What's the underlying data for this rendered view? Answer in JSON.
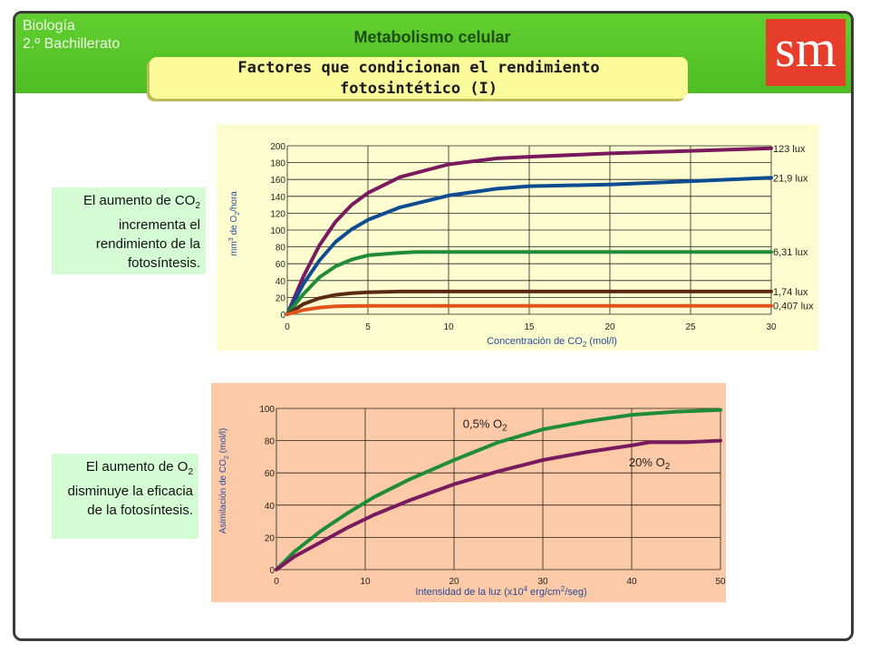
{
  "header": {
    "subject_line1": "Biología",
    "subject_line2": "2.º Bachillerato",
    "title": "Metabolismo celular",
    "logo_text": "sm",
    "subtitle_line1": "Factores que condicionan el rendimiento",
    "subtitle_line2": "fotosintético (I)"
  },
  "notes": {
    "co2": {
      "pre": "El aumento de CO",
      "sub": "2",
      "post": "incrementa el rendimiento de la fotosíntesis."
    },
    "o2": {
      "pre": "El aumento de O",
      "sub": "2",
      "post": "disminuye la eficacia de la fotosíntesis."
    }
  },
  "colors": {
    "header_green": "#55c428",
    "panel1_bg": "#fdfdcf",
    "panel2_bg": "#fccaa6",
    "purple": "#7a1a5e",
    "blue": "#0e4c92",
    "green": "#1e8c38",
    "brown": "#5a2a14",
    "orange": "#e2541c",
    "axis_text": "#2a4a9a"
  },
  "chart_data": [
    {
      "type": "line",
      "xlabel": "Concentración de CO",
      "xlabel_sub": "2",
      "xlabel_post": " (mol/l)",
      "ylabel": "mm",
      "ylabel_sup": "3",
      "ylabel_mid": " de O",
      "ylabel_sub": "2",
      "ylabel_post": "/hora",
      "xlim": [
        0,
        30
      ],
      "ylim": [
        0,
        200
      ],
      "xticks": [
        0,
        5,
        10,
        15,
        20,
        25,
        30
      ],
      "yticks": [
        0,
        20,
        40,
        60,
        80,
        100,
        120,
        140,
        160,
        180,
        200
      ],
      "grid": true,
      "series": [
        {
          "name": "123 lux",
          "color": "#7a1a5e",
          "points": [
            [
              0,
              0
            ],
            [
              1,
              45
            ],
            [
              2,
              82
            ],
            [
              3,
              110
            ],
            [
              4,
              130
            ],
            [
              5,
              144
            ],
            [
              7,
              163
            ],
            [
              10,
              178
            ],
            [
              13,
              185
            ],
            [
              15,
              187
            ],
            [
              20,
              191
            ],
            [
              25,
              194
            ],
            [
              30,
              197
            ]
          ]
        },
        {
          "name": "21,9 lux",
          "color": "#0e4c92",
          "points": [
            [
              0,
              0
            ],
            [
              1,
              36
            ],
            [
              2,
              64
            ],
            [
              3,
              86
            ],
            [
              4,
              101
            ],
            [
              5,
              112
            ],
            [
              7,
              127
            ],
            [
              10,
              141
            ],
            [
              13,
              149
            ],
            [
              15,
              152
            ],
            [
              20,
              154
            ],
            [
              25,
              158
            ],
            [
              30,
              162
            ]
          ]
        },
        {
          "name": "6,31 lux",
          "color": "#1e8c38",
          "points": [
            [
              0,
              0
            ],
            [
              1,
              24
            ],
            [
              2,
              44
            ],
            [
              3,
              57
            ],
            [
              4,
              65
            ],
            [
              5,
              70
            ],
            [
              7,
              73
            ],
            [
              8,
              74
            ],
            [
              10,
              74
            ],
            [
              15,
              74
            ],
            [
              20,
              74
            ],
            [
              25,
              74
            ],
            [
              30,
              74
            ]
          ]
        },
        {
          "name": "1,74 lux",
          "color": "#5a2a14",
          "points": [
            [
              0,
              0
            ],
            [
              1,
              12
            ],
            [
              2,
              19
            ],
            [
              3,
              23
            ],
            [
              4,
              25
            ],
            [
              5,
              26
            ],
            [
              7,
              27
            ],
            [
              10,
              27
            ],
            [
              20,
              27
            ],
            [
              30,
              27
            ]
          ]
        },
        {
          "name": "0,407 lux",
          "color": "#e2541c",
          "points": [
            [
              0,
              0
            ],
            [
              1,
              5
            ],
            [
              2,
              8
            ],
            [
              3,
              9.5
            ],
            [
              5,
              10
            ],
            [
              10,
              10
            ],
            [
              20,
              10
            ],
            [
              30,
              10
            ]
          ]
        }
      ]
    },
    {
      "type": "line",
      "xlabel": "Intensidad de la luz (x10",
      "xlabel_sup": "4",
      "xlabel_mid": " erg/cm",
      "xlabel_sup2": "2",
      "xlabel_post": "/seg)",
      "ylabel": "Asimilación de CO",
      "ylabel_sub": "2",
      "ylabel_post": " (mol/l)",
      "xlim": [
        0,
        50
      ],
      "ylim": [
        0,
        100
      ],
      "xticks": [
        0,
        10,
        20,
        30,
        40,
        50
      ],
      "yticks": [
        0,
        20,
        40,
        60,
        80,
        100
      ],
      "grid": true,
      "series": [
        {
          "name": "0,5% O",
          "name_sub": "2",
          "color": "#1e8c38",
          "points": [
            [
              0,
              0
            ],
            [
              2,
              11
            ],
            [
              5,
              24
            ],
            [
              8,
              35
            ],
            [
              11,
              45
            ],
            [
              15,
              56
            ],
            [
              20,
              68
            ],
            [
              25,
              79
            ],
            [
              30,
              87
            ],
            [
              35,
              92
            ],
            [
              40,
              96
            ],
            [
              45,
              98
            ],
            [
              50,
              99
            ]
          ]
        },
        {
          "name": "20% O",
          "name_sub": "2",
          "color": "#7a1a5e",
          "points": [
            [
              0,
              0
            ],
            [
              2,
              8
            ],
            [
              5,
              17
            ],
            [
              8,
              26
            ],
            [
              11,
              34
            ],
            [
              15,
              43
            ],
            [
              20,
              53
            ],
            [
              25,
              61
            ],
            [
              30,
              68
            ],
            [
              35,
              73
            ],
            [
              40,
              77
            ],
            [
              42,
              79
            ],
            [
              46,
              79
            ],
            [
              50,
              80
            ]
          ]
        }
      ]
    }
  ]
}
